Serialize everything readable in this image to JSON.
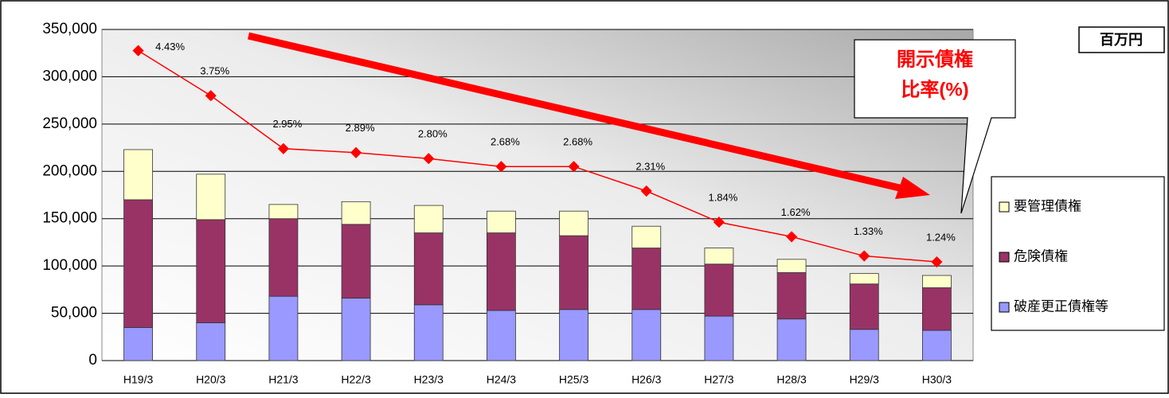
{
  "chart_data": {
    "type": "bar",
    "stacked": true,
    "unit_label": "百万円",
    "callout": [
      "開示債権",
      "比率(%)"
    ],
    "categories": [
      "H19/3",
      "H20/3",
      "H21/3",
      "H22/3",
      "H23/3",
      "H24/3",
      "H25/3",
      "H26/3",
      "H27/3",
      "H28/3",
      "H29/3",
      "H30/3"
    ],
    "series": [
      {
        "name": "破産更正債権等",
        "color": "#9999ff",
        "values": [
          35000,
          40000,
          68000,
          66000,
          59000,
          53000,
          54000,
          54000,
          47000,
          44000,
          33000,
          32000
        ]
      },
      {
        "name": "危険債権",
        "color": "#993366",
        "values": [
          135000,
          109000,
          82000,
          78000,
          76000,
          82000,
          78000,
          65000,
          55000,
          49000,
          48000,
          45000
        ]
      },
      {
        "name": "要管理債権",
        "color": "#ffffcc",
        "values": [
          53000,
          48000,
          15000,
          24000,
          29000,
          23000,
          26000,
          23000,
          17000,
          14000,
          11000,
          13000
        ]
      },
      {
        "type": "line",
        "axis": "y2",
        "color": "#ff0000",
        "values": [
          4.43,
          3.75,
          2.95,
          2.89,
          2.8,
          2.68,
          2.68,
          2.31,
          1.84,
          1.62,
          1.33,
          1.24
        ],
        "value_labels": [
          "4.43%",
          "3.75%",
          "2.95%",
          "2.89%",
          "2.80%",
          "2.68%",
          "2.68%",
          "2.31%",
          "1.84%",
          "1.62%",
          "1.33%",
          "1.24%"
        ]
      }
    ],
    "ylim": [
      0,
      350000
    ],
    "yticks": [
      0,
      {
        "value": 50000,
        "label": "50,000"
      },
      {
        "value": 100000,
        "label": "100,000"
      },
      {
        "value": 150000,
        "label": "150,000"
      },
      {
        "value": 200000,
        "label": "200,000"
      },
      {
        "value": 250000,
        "label": "250,000"
      },
      {
        "value": 300000,
        "label": "300,000"
      },
      {
        "value": 350000,
        "label": "350,000"
      }
    ],
    "y2lim": [
      -0.25,
      4.75
    ],
    "grid": true
  }
}
